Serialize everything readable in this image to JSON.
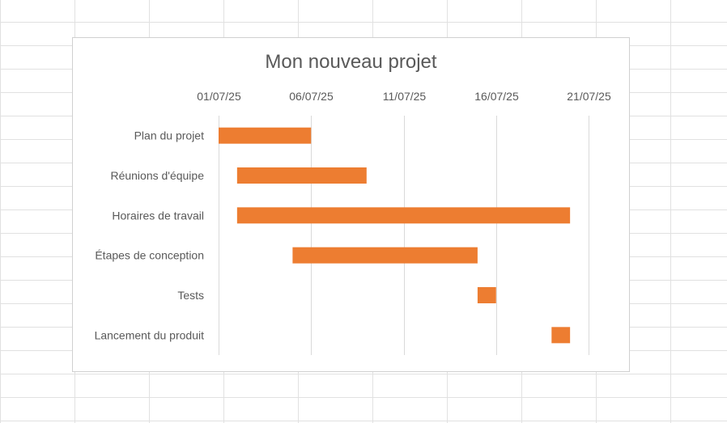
{
  "chart_data": {
    "type": "bar",
    "orientation": "horizontal",
    "title": "Mon nouveau projet",
    "x_axis_position": "top",
    "xlim": [
      "2025-07-01",
      "2025-07-21"
    ],
    "x_ticks": [
      "01/07/25",
      "06/07/25",
      "11/07/25",
      "16/07/25",
      "21/07/25"
    ],
    "grid": true,
    "bar_color": "#ED7D31",
    "categories": [
      "Plan du projet",
      "Réunions d'équipe",
      "Horaires de travail",
      "Étapes de conception",
      "Tests",
      "Lancement du produit"
    ],
    "tasks": [
      {
        "name": "Plan du projet",
        "start": "2025-07-01",
        "end": "2025-07-06"
      },
      {
        "name": "Réunions d'équipe",
        "start": "2025-07-02",
        "end": "2025-07-09"
      },
      {
        "name": "Horaires de travail",
        "start": "2025-07-02",
        "end": "2025-07-20"
      },
      {
        "name": "Étapes de conception",
        "start": "2025-07-05",
        "end": "2025-07-15"
      },
      {
        "name": "Tests",
        "start": "2025-07-15",
        "end": "2025-07-16"
      },
      {
        "name": "Lancement du produit",
        "start": "2025-07-19",
        "end": "2025-07-20"
      }
    ]
  }
}
